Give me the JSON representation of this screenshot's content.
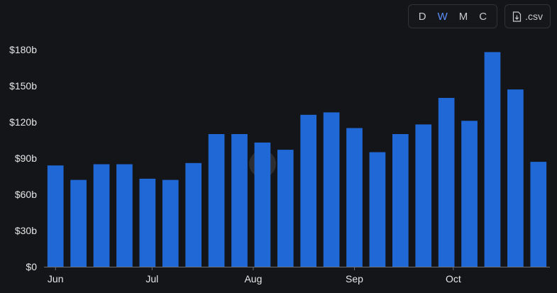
{
  "toolbar": {
    "intervals": [
      "D",
      "W",
      "M",
      "C"
    ],
    "active_interval": "W",
    "csv_label": ".csv",
    "csv_icon": "file-download-icon"
  },
  "colors": {
    "background": "#141518",
    "bar": "#1f68d6",
    "axis": "#e6e6e6",
    "active": "#5b8ff9"
  },
  "chart_data": {
    "type": "bar",
    "ylim": [
      0,
      180
    ],
    "y_ticks": [
      0,
      30,
      60,
      90,
      120,
      150,
      180
    ],
    "y_tick_labels": [
      "$0",
      "$30b",
      "$60b",
      "$90b",
      "$120b",
      "$150b",
      "$180b"
    ],
    "x_tick_labels": [
      {
        "label": "Jun",
        "index": 0
      },
      {
        "label": "Jul",
        "index": 4.2
      },
      {
        "label": "Aug",
        "index": 8.6
      },
      {
        "label": "Sep",
        "index": 13
      },
      {
        "label": "Oct",
        "index": 17.3
      }
    ],
    "values": [
      84,
      72,
      85,
      85,
      73,
      72,
      86,
      110,
      110,
      103,
      97,
      126,
      128,
      115,
      95,
      110,
      118,
      140,
      121,
      178,
      147,
      87
    ]
  }
}
